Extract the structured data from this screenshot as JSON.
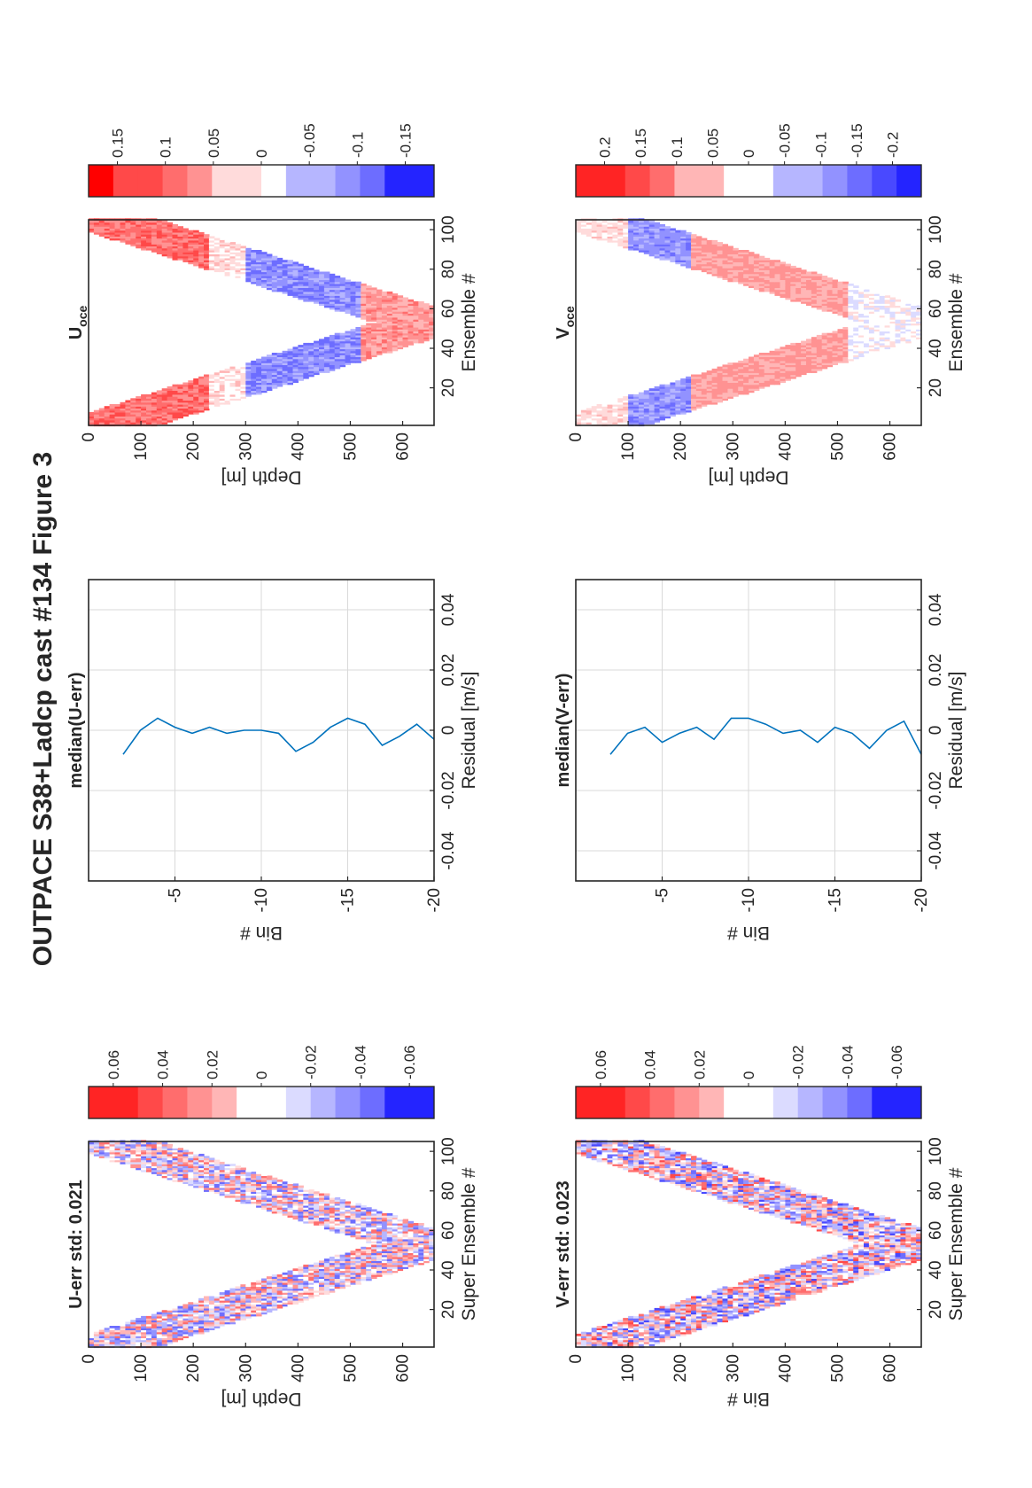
{
  "figure_title": "OUTPACE S38+Ladcp cast #134  Figure 3",
  "colors": {
    "red": "#ff0000",
    "blue": "#0000ff",
    "line": "#0072bd",
    "grid": "#d9d9d9",
    "axis": "#262626"
  },
  "chart_data": [
    {
      "id": "u-err",
      "type": "heatmap",
      "title": "U-err std: 0.021",
      "xlabel": "Super Ensemble #",
      "ylabel": "Depth [m]",
      "xlim": [
        1,
        105
      ],
      "ylim": [
        0,
        660
      ],
      "xticks": [
        "20",
        "40",
        "60",
        "80",
        "100"
      ],
      "yticks": [
        "0",
        "100",
        "200",
        "300",
        "400",
        "500",
        "600"
      ],
      "colorbar": {
        "ticks": [
          "0.06",
          "0.04",
          "0.02",
          "0",
          "-0.02",
          "-0.04",
          "-0.06"
        ],
        "clim": [
          -0.07,
          0.07
        ]
      },
      "field": {
        "pattern": "v-shaped cast band, bottom near ensemble 53 at ~650 m",
        "amplitude": 0.045
      }
    },
    {
      "id": "median-u-err",
      "type": "line",
      "title": "median(U-err)",
      "xlabel": "Residual [m/s]",
      "ylabel": "Bin #",
      "xlim": [
        -0.05,
        0.05
      ],
      "ylim": [
        -20,
        0
      ],
      "xticks": [
        "-0.04",
        "-0.02",
        "0",
        "0.02",
        "0.04"
      ],
      "yticks": [
        "-5",
        "-10",
        "-15",
        "-20"
      ],
      "grid": true,
      "x": [
        -0.008,
        0.0,
        0.004,
        0.001,
        -0.001,
        0.001,
        -0.001,
        0.0,
        0.0,
        -0.001,
        -0.007,
        -0.004,
        0.001,
        0.004,
        0.002,
        -0.005,
        -0.002,
        0.002,
        -0.003
      ],
      "y": [
        -2,
        -3,
        -4,
        -5,
        -6,
        -7,
        -8,
        -9,
        -10,
        -11,
        -12,
        -13,
        -14,
        -15,
        -16,
        -17,
        -18,
        -19,
        -20
      ]
    },
    {
      "id": "u-oce",
      "type": "heatmap",
      "title": "U",
      "title_sub": "oce",
      "xlabel": "Ensemble #",
      "ylabel": "Depth [m]",
      "xlim": [
        1,
        105
      ],
      "ylim": [
        0,
        660
      ],
      "xticks": [
        "20",
        "40",
        "60",
        "80",
        "100"
      ],
      "yticks": [
        "0",
        "100",
        "200",
        "300",
        "400",
        "500",
        "600"
      ],
      "colorbar": {
        "ticks": [
          "0.15",
          "0.1",
          "0.05",
          "0",
          "-0.05",
          "-0.1",
          "-0.15"
        ],
        "clim": [
          -0.18,
          0.18
        ]
      },
      "field": {
        "pattern": "red near surface, blue 300-500 m, red near bottom",
        "amplitude": 0.12
      }
    },
    {
      "id": "v-err",
      "type": "heatmap",
      "title": "V-err std: 0.023",
      "xlabel": "Super Ensemble #",
      "ylabel": "Bin #",
      "xlim": [
        1,
        105
      ],
      "ylim": [
        0,
        660
      ],
      "xticks": [
        "20",
        "40",
        "60",
        "80",
        "100"
      ],
      "yticks": [
        "0",
        "100",
        "200",
        "300",
        "400",
        "500",
        "600"
      ],
      "colorbar": {
        "ticks": [
          "0.06",
          "0.04",
          "0.02",
          "0",
          "-0.02",
          "-0.04",
          "-0.06"
        ],
        "clim": [
          -0.07,
          0.07
        ]
      },
      "field": {
        "pattern": "v-shaped cast band, bottom near ensemble 53 at ~650 m",
        "amplitude": 0.05
      }
    },
    {
      "id": "median-v-err",
      "type": "line",
      "title": "median(V-err)",
      "xlabel": "Residual [m/s]",
      "ylabel": "Bin #",
      "xlim": [
        -0.05,
        0.05
      ],
      "ylim": [
        -20,
        0
      ],
      "xticks": [
        "-0.04",
        "-0.02",
        "0",
        "0.02",
        "0.04"
      ],
      "yticks": [
        "-5",
        "-10",
        "-15",
        "-20"
      ],
      "grid": true,
      "x": [
        -0.008,
        -0.001,
        0.001,
        -0.004,
        -0.001,
        0.001,
        -0.003,
        0.004,
        0.004,
        0.002,
        -0.001,
        0.0,
        -0.004,
        0.001,
        -0.001,
        -0.006,
        0.0,
        0.003,
        -0.008
      ],
      "y": [
        -2,
        -3,
        -4,
        -5,
        -6,
        -7,
        -8,
        -9,
        -10,
        -11,
        -12,
        -13,
        -14,
        -15,
        -16,
        -17,
        -18,
        -19,
        -20
      ]
    },
    {
      "id": "v-oce",
      "type": "heatmap",
      "title": "V",
      "title_sub": "oce",
      "xlabel": "Ensemble #",
      "ylabel": "Depth [m]",
      "xlim": [
        1,
        105
      ],
      "ylim": [
        0,
        660
      ],
      "xticks": [
        "20",
        "40",
        "60",
        "80",
        "100"
      ],
      "yticks": [
        "0",
        "100",
        "200",
        "300",
        "400",
        "500",
        "600"
      ],
      "colorbar": {
        "ticks": [
          "0.2",
          "0.15",
          "0.1",
          "0.05",
          "0",
          "-0.05",
          "-0.1",
          "-0.15",
          "-0.2"
        ],
        "clim": [
          -0.24,
          0.24
        ]
      },
      "field": {
        "pattern": "blue 100-200 m, red 250-500 m, white near bottom",
        "amplitude": 0.13
      }
    }
  ]
}
